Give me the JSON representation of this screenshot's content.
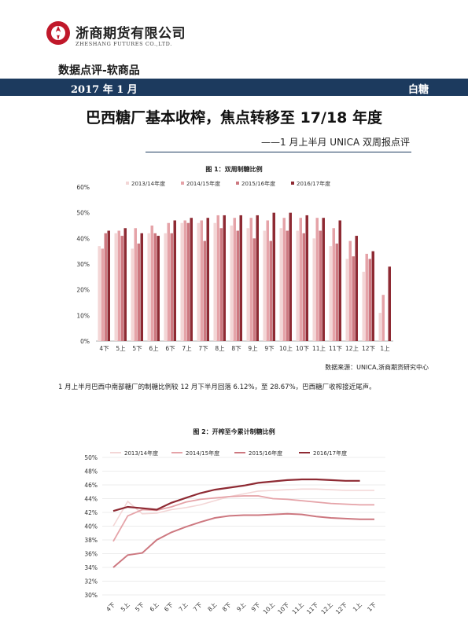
{
  "header": {
    "company_cn": "浙商期货有限公司",
    "company_en": "ZHESHANG FUTURES CO.,LTD.",
    "category": "数据点评-软商品",
    "date": "2017 年 1 月",
    "tag": "白糖"
  },
  "article": {
    "title": "巴西糖厂基本收榨，焦点转移至 17/18 年度",
    "subtitle": "——1 月上半月 UNICA 双周报点评",
    "source": "数据来源：UNICA,浙商期货研究中心",
    "paragraph": "1 月上半月巴西中南部糖厂的制糖比例较 12 月下半月回落 6.12%，至 28.67%，巴西糖厂收榨接近尾声。"
  },
  "colors": {
    "band": "#1c3a5e",
    "s2013": "#f3d6d6",
    "s2014": "#e5a3a8",
    "s2015": "#cd7880",
    "s2016": "#8e2a33",
    "logo": "#c0182a"
  },
  "chart_data": [
    {
      "type": "bar",
      "title": "图 1：双周制糖比例",
      "categories": [
        "4下",
        "5上",
        "5下",
        "6上",
        "6下",
        "7上",
        "7下",
        "8上",
        "8下",
        "9上",
        "9下",
        "10上",
        "10下",
        "11上",
        "11下",
        "12上",
        "12下",
        "1上"
      ],
      "tick_labels": [
        "4下",
        "5上",
        "5下",
        "6上",
        "6下",
        "7上",
        "7下",
        "8上",
        "8下",
        "9上",
        "9下",
        "10上",
        "10下",
        "11上",
        "11下",
        "12上",
        "12下",
        "1上"
      ],
      "ylim": [
        0,
        60
      ],
      "yticks": [
        "0%",
        "10%",
        "20%",
        "30%",
        "40%",
        "50%",
        "60%"
      ],
      "legend": "top",
      "series": [
        {
          "name": "2013/14年度",
          "values": [
            37,
            42,
            36,
            42,
            42,
            46,
            46,
            46,
            45,
            44,
            43,
            44,
            43,
            40,
            37,
            32,
            27,
            11
          ]
        },
        {
          "name": "2014/15年度",
          "values": [
            36,
            43,
            44,
            45,
            46,
            47,
            47,
            49,
            48,
            48,
            47,
            48,
            48,
            48,
            44,
            39,
            34,
            18
          ]
        },
        {
          "name": "2015/16年度",
          "values": [
            42,
            41,
            38,
            42,
            42,
            46,
            39,
            44,
            43,
            40,
            39,
            43,
            42,
            43,
            38,
            33,
            32,
            null
          ]
        },
        {
          "name": "2016/17年度",
          "values": [
            43,
            44,
            42,
            41,
            47,
            48,
            48,
            49,
            49,
            49,
            50,
            50,
            49,
            48,
            47,
            41,
            35,
            29
          ]
        }
      ]
    },
    {
      "type": "line",
      "title": "图 2：开榨至今累计制糖比例",
      "x": [
        "4下",
        "5上",
        "5下",
        "6上",
        "6下",
        "7上",
        "7下",
        "8上",
        "8下",
        "9上",
        "9下",
        "10上",
        "10下",
        "11上",
        "11下",
        "12上",
        "12下",
        "1上",
        "1下"
      ],
      "ylim": [
        30,
        50
      ],
      "yticks": [
        "30%",
        "32%",
        "34%",
        "36%",
        "38%",
        "40%",
        "42%",
        "44%",
        "46%",
        "48%",
        "50%"
      ],
      "legend": "top",
      "series": [
        {
          "name": "2013/14年度",
          "values": [
            40.0,
            43.6,
            41.8,
            41.9,
            42.4,
            42.7,
            43.1,
            43.7,
            44.3,
            44.7,
            45.1,
            45.2,
            45.3,
            45.4,
            45.4,
            45.3,
            45.2,
            45.2,
            45.2
          ]
        },
        {
          "name": "2014/15年度",
          "values": [
            37.8,
            41.5,
            42.4,
            42.3,
            42.8,
            43.5,
            43.9,
            44.1,
            44.3,
            44.4,
            44.4,
            44.0,
            43.9,
            43.7,
            43.5,
            43.3,
            43.2,
            43.1,
            43.1
          ]
        },
        {
          "name": "2015/16年度",
          "values": [
            34.0,
            35.8,
            36.1,
            38.0,
            39.1,
            39.9,
            40.6,
            41.2,
            41.5,
            41.6,
            41.6,
            41.7,
            41.8,
            41.7,
            41.4,
            41.2,
            41.1,
            41.0,
            41.0
          ]
        },
        {
          "name": "2016/17年度",
          "values": [
            42.2,
            42.8,
            42.6,
            42.4,
            43.4,
            44.1,
            44.8,
            45.3,
            45.6,
            45.9,
            46.3,
            46.5,
            46.7,
            46.8,
            46.8,
            46.7,
            46.6,
            46.6,
            null
          ]
        }
      ]
    }
  ]
}
